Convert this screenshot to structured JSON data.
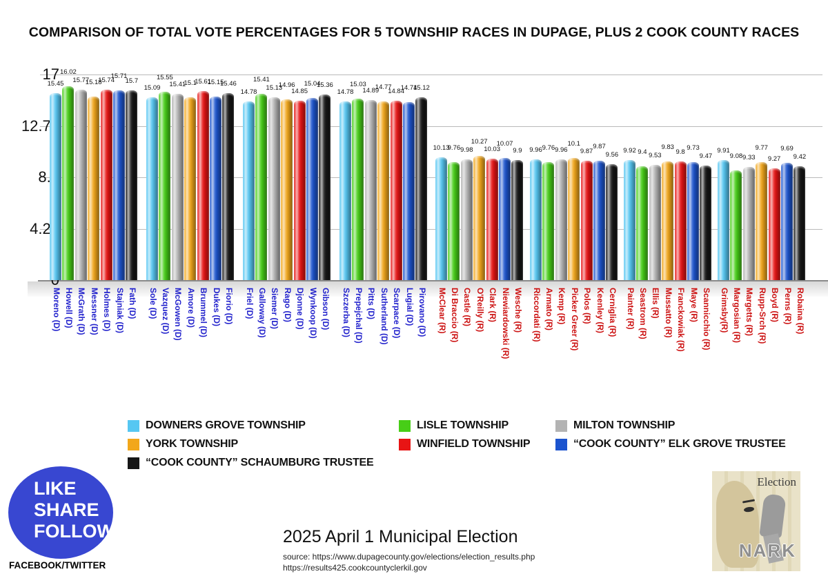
{
  "title": "COMPARISON OF TOTAL VOTE PERCENTAGES FOR 5 TOWNSHIP RACES IN DUPAGE, PLUS 2 COOK COUNTY RACES",
  "chart_data": {
    "type": "bar",
    "title": "COMPARISON OF TOTAL VOTE PERCENTAGES FOR 5 TOWNSHIP RACES IN DUPAGE, PLUS 2 COOK COUNTY RACES",
    "ylabel": "",
    "ylim": [
      0,
      17
    ],
    "yticks": [
      0,
      4.25,
      8.5,
      12.75,
      17
    ],
    "grid": true,
    "legend_position": "bottom",
    "series": [
      {
        "name": "DOWNERS GROVE TOWNSHIP",
        "color": "#56c7f2"
      },
      {
        "name": "LISLE TOWNSHIP",
        "color": "#47ce17"
      },
      {
        "name": "MILTON TOWNSHIP",
        "color": "#b3b3b3"
      },
      {
        "name": "YORK TOWNSHIP",
        "color": "#f2a71b"
      },
      {
        "name": "WINFIELD TOWNSHIP",
        "color": "#e81414"
      },
      {
        "name": "“COOK COUNTY” ELK GROVE TRUSTEE",
        "color": "#1c54ce"
      },
      {
        "name": "“COOK COUNTY” SCHAUMBURG TRUSTEE",
        "color": "#161616"
      }
    ],
    "groups": [
      {
        "party": "D",
        "label_color": "#2222cc",
        "candidates": [
          "Moreno (D)",
          "Howell (D)",
          "McGrath (D)",
          "Messner (D)",
          "Holmes (D)",
          "Stajniak (D)",
          "Fath (D)"
        ],
        "values": [
          15.45,
          16.02,
          15.77,
          15.18,
          15.74,
          15.71,
          15.7
        ]
      },
      {
        "party": "D",
        "label_color": "#2222cc",
        "candidates": [
          "Sole (D)",
          "Vazquez (D)",
          "McGowen (D)",
          "Amore (D)",
          "Brummel (D)",
          "Dukes (D)",
          "Fiorio (D)"
        ],
        "values": [
          15.09,
          15.55,
          15.41,
          15.1,
          15.61,
          15.15,
          15.46
        ]
      },
      {
        "party": "D",
        "label_color": "#2222cc",
        "candidates": [
          "Friel (D)",
          "Galloway (D)",
          "Siemer (D)",
          "Rago (D)",
          "Djonne (D)",
          "Wynkoop (D)",
          "Gibson (D)"
        ],
        "values": [
          14.78,
          15.41,
          15.13,
          14.96,
          14.85,
          15.04,
          15.36
        ]
      },
      {
        "party": "D",
        "label_color": "#2222cc",
        "candidates": [
          "Szczerba (D)",
          "Prepejchal (D)",
          "Pitts (D)",
          "Sutherland (D)",
          "Scarpace (D)",
          "Lugial (D)",
          "Pirovano (D)"
        ],
        "values": [
          14.78,
          15.03,
          14.89,
          14.77,
          14.84,
          14.74,
          15.12
        ]
      },
      {
        "party": "R",
        "label_color": "#cc1111",
        "candidates": [
          "McClear (R)",
          "Di Braccio (R)",
          "Castle (R)",
          "O'Reilly (R)",
          "Clark (R)",
          "Niewiardowski (R)",
          "Wesche (R)"
        ],
        "values": [
          10.13,
          9.76,
          9.98,
          10.27,
          10.03,
          10.07,
          9.9
        ]
      },
      {
        "party": "R",
        "label_color": "#cc1111",
        "candidates": [
          "Riccordati (R)",
          "Armato (R)",
          "Kemp (R)",
          "Picker Greer (R)",
          "Polos (R)",
          "Keenley (R)",
          "Cerniglia (R)"
        ],
        "values": [
          9.96,
          9.76,
          9.96,
          10.1,
          9.87,
          9.87,
          9.56
        ]
      },
      {
        "party": "R",
        "label_color": "#cc1111",
        "candidates": [
          "Painter (R)",
          "Seastrom (R)",
          "Ellis (R)",
          "Mussatto (R)",
          "Franckowiak (R)",
          "Maye (R)",
          "Scannicchio (R)"
        ],
        "values": [
          9.92,
          9.4,
          9.53,
          9.83,
          9.8,
          9.73,
          9.47
        ]
      },
      {
        "party": "R",
        "label_color": "#cc1111",
        "candidates": [
          "Grimsby(R)",
          "Margosian (R)",
          "Margetts (R)",
          "Rupp-Srch (R)",
          "Boyd (R)",
          "Perns (R)",
          "Robaina (R)"
        ],
        "values": [
          9.91,
          9.08,
          9.33,
          9.77,
          9.27,
          9.69,
          9.42
        ]
      }
    ]
  },
  "badge": {
    "lines": [
      "LIKE",
      "SHARE",
      "FOLLOW"
    ],
    "sub_label": "FACEBOOK/TWITTER",
    "color": "#3847d1"
  },
  "footer": {
    "title": "2025 April 1 Municipal Election",
    "source_line1": "source: https://www.dupagecounty.gov/elections/election_results.php",
    "source_line2": "https://results425.cookcountyclerkil.gov"
  },
  "logo": {
    "top_text": "Election",
    "bottom_text": "NARK"
  }
}
